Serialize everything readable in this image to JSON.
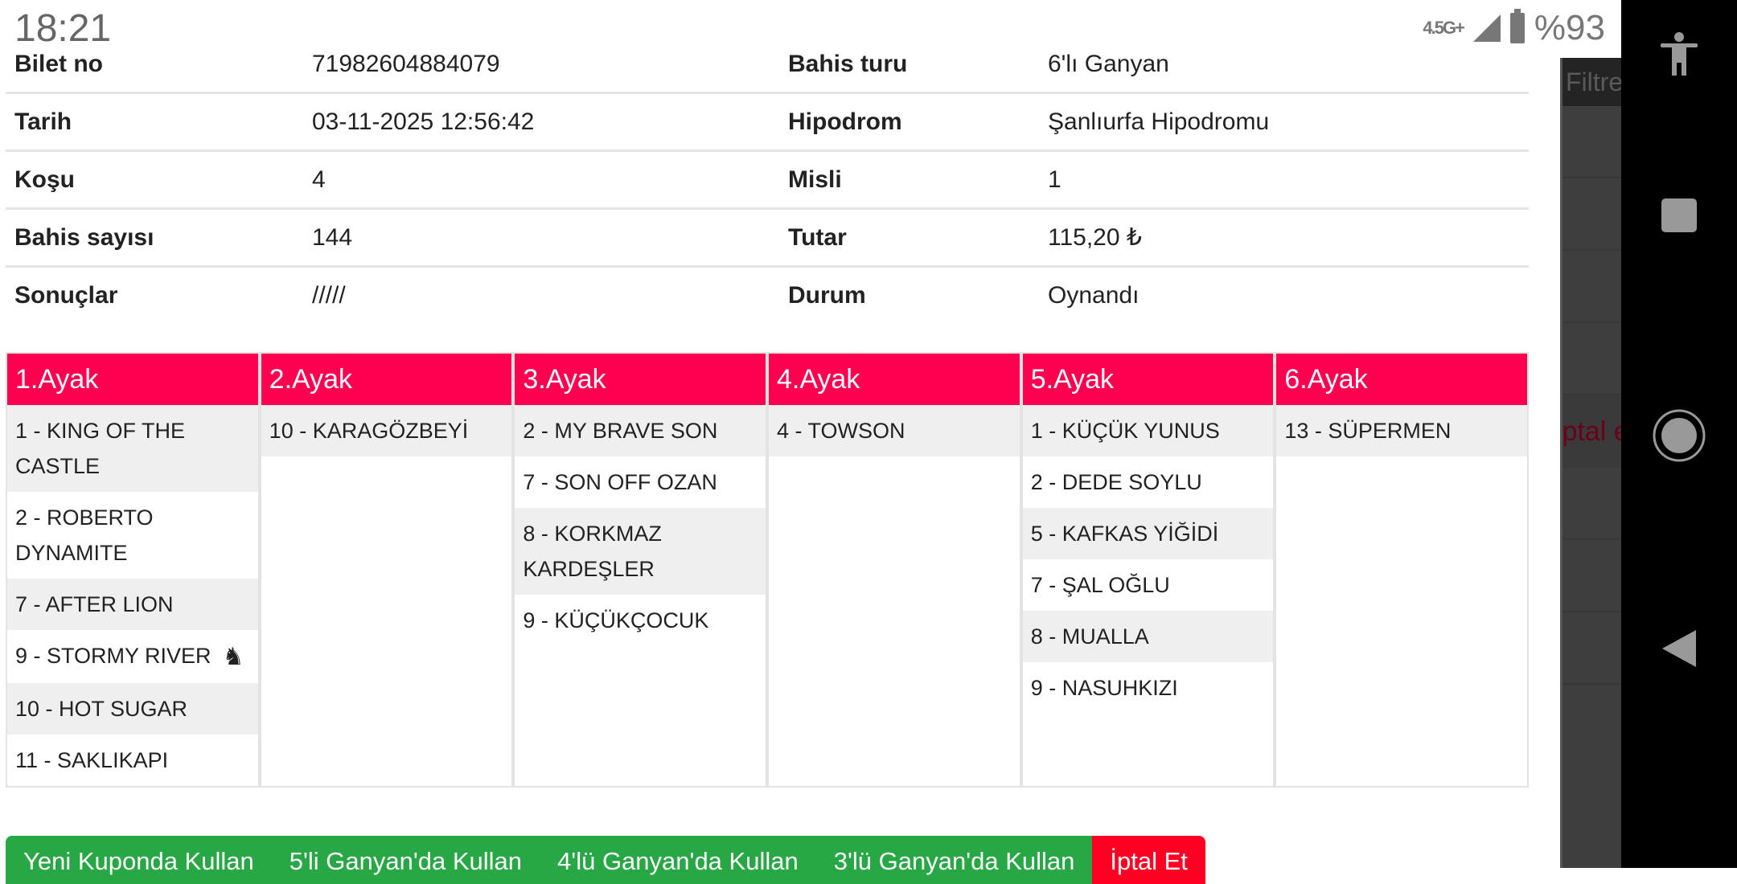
{
  "status_bar": {
    "time": "18:21",
    "network": "4.5G+",
    "battery": "%93"
  },
  "ticket": [
    {
      "label": "Bilet no",
      "value": "71982604884079",
      "label2": "Bahis turu",
      "value2": "6'lı Ganyan"
    },
    {
      "label": "Tarih",
      "value": "03-11-2025 12:56:42",
      "label2": "Hipodrom",
      "value2": "Şanlıurfa Hipodromu"
    },
    {
      "label": "Koşu",
      "value": "4",
      "label2": "Misli",
      "value2": "1"
    },
    {
      "label": "Bahis sayısı",
      "value": "144",
      "label2": "Tutar",
      "value2": "115,20 ₺"
    },
    {
      "label": "Sonuçlar",
      "value": "/////",
      "label2": "Durum",
      "value2": "Oynandı"
    }
  ],
  "legs": [
    {
      "title": "1.Ayak",
      "horses": [
        "1 - KING OF THE CASTLE",
        "2 - ROBERTO DYNAMITE",
        "7 - AFTER LION",
        "9 - STORMY RIVER",
        "10 - HOT SUGAR",
        "11 - SAKLIKAPI"
      ]
    },
    {
      "title": "2.Ayak",
      "horses": [
        "10 - KARAGÖZBEYİ"
      ]
    },
    {
      "title": "3.Ayak",
      "horses": [
        "2 - MY BRAVE SON",
        "7 - SON OFF OZAN",
        "8 - KORKMAZ KARDEŞLER",
        "9 - KÜÇÜKÇOCUK"
      ]
    },
    {
      "title": "4.Ayak",
      "horses": [
        "4 - TOWSON"
      ]
    },
    {
      "title": "5.Ayak",
      "horses": [
        "1 - KÜÇÜK YUNUS",
        "2 - DEDE SOYLU",
        "5 - KAFKAS YİĞİDİ",
        "7 - ŞAL OĞLU",
        "8 - MUALLA",
        "9 - NASUHKIZI"
      ]
    },
    {
      "title": "6.Ayak",
      "horses": [
        "13 - SÜPERMEN"
      ]
    }
  ],
  "horse_icon_on": "9 - STORMY RIVER",
  "buttons": [
    "Yeni Kuponda Kullan",
    "5'li Ganyan'da Kullan",
    "4'lü Ganyan'da Kullan",
    "3'lü Ganyan'da Kullan",
    "İptal Et"
  ],
  "overlay": {
    "filter_label": "Filtre",
    "cancel_label": "İptal et"
  },
  "colors": {
    "leg_header": "#ff0050",
    "primary_button": "#28a745",
    "cancel_button": "#ff0022"
  }
}
